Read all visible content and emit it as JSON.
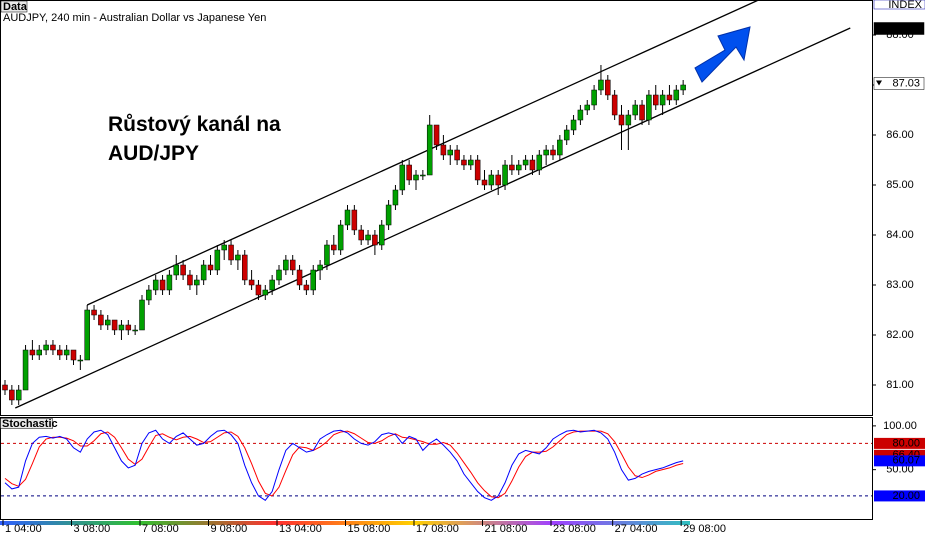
{
  "chart_data": {
    "type": "candlestick",
    "label": "Data",
    "title": "AUDJPY, 240 min - Australian Dollar vs Japanese Yen",
    "index_label": "INDEX",
    "annotation": [
      "Růstový kanál na",
      "AUD/JPY"
    ],
    "categories": [
      "1 04:00",
      null,
      null,
      null,
      null,
      null,
      null,
      null,
      null,
      null,
      "3 08:00",
      null,
      null,
      null,
      null,
      null,
      null,
      null,
      null,
      null,
      "7 08:00",
      null,
      null,
      null,
      null,
      null,
      null,
      null,
      null,
      null,
      "9 08:00",
      null,
      null,
      null,
      null,
      null,
      null,
      null,
      null,
      null,
      "13 04:00",
      null,
      null,
      null,
      null,
      null,
      null,
      null,
      null,
      null,
      "15 08:00",
      null,
      null,
      null,
      null,
      null,
      null,
      null,
      null,
      null,
      "17 08:00",
      null,
      null,
      null,
      null,
      null,
      null,
      null,
      null,
      null,
      "21 08:00",
      null,
      null,
      null,
      null,
      null,
      null,
      null,
      null,
      null,
      "23 08:00",
      null,
      null,
      null,
      null,
      null,
      null,
      null,
      null,
      "27 04:00",
      null,
      null,
      null,
      null,
      null,
      null,
      null,
      null,
      null,
      "29 08:00"
    ],
    "candles": [
      [
        81.0,
        81.1,
        80.8,
        80.9
      ],
      [
        80.9,
        81.0,
        80.6,
        80.7
      ],
      [
        80.7,
        81.0,
        80.6,
        80.9
      ],
      [
        80.9,
        81.8,
        80.9,
        81.7
      ],
      [
        81.7,
        81.9,
        81.5,
        81.6
      ],
      [
        81.6,
        81.8,
        81.5,
        81.7
      ],
      [
        81.7,
        81.9,
        81.6,
        81.8
      ],
      [
        81.8,
        81.9,
        81.6,
        81.7
      ],
      [
        81.7,
        81.8,
        81.5,
        81.6
      ],
      [
        81.6,
        81.8,
        81.5,
        81.7
      ],
      [
        81.7,
        81.7,
        81.4,
        81.5
      ],
      [
        81.5,
        81.6,
        81.3,
        81.5
      ],
      [
        81.5,
        82.6,
        81.5,
        82.5
      ],
      [
        82.5,
        82.6,
        82.3,
        82.4
      ],
      [
        82.4,
        82.5,
        82.1,
        82.2
      ],
      [
        82.2,
        82.4,
        82.1,
        82.3
      ],
      [
        82.3,
        82.3,
        82.0,
        82.1
      ],
      [
        82.1,
        82.3,
        81.9,
        82.2
      ],
      [
        82.2,
        82.3,
        82.0,
        82.1
      ],
      [
        82.1,
        82.2,
        82.0,
        82.1
      ],
      [
        82.1,
        82.8,
        82.1,
        82.7
      ],
      [
        82.7,
        83.0,
        82.6,
        82.9
      ],
      [
        82.9,
        83.2,
        82.8,
        83.1
      ],
      [
        83.1,
        83.2,
        82.8,
        82.9
      ],
      [
        82.9,
        83.3,
        82.8,
        83.2
      ],
      [
        83.2,
        83.6,
        83.1,
        83.4
      ],
      [
        83.4,
        83.5,
        83.1,
        83.2
      ],
      [
        83.2,
        83.3,
        82.9,
        83.0
      ],
      [
        83.0,
        83.2,
        82.8,
        83.1
      ],
      [
        83.1,
        83.5,
        83.0,
        83.4
      ],
      [
        83.4,
        83.6,
        83.2,
        83.3
      ],
      [
        83.3,
        83.8,
        83.2,
        83.7
      ],
      [
        83.7,
        83.9,
        83.5,
        83.8
      ],
      [
        83.8,
        83.9,
        83.4,
        83.5
      ],
      [
        83.5,
        83.7,
        83.3,
        83.6
      ],
      [
        83.6,
        83.7,
        83.0,
        83.1
      ],
      [
        83.1,
        83.3,
        82.9,
        83.0
      ],
      [
        83.0,
        83.1,
        82.7,
        82.8
      ],
      [
        82.8,
        83.0,
        82.7,
        82.9
      ],
      [
        82.9,
        83.2,
        82.8,
        83.1
      ],
      [
        83.1,
        83.4,
        83.0,
        83.3
      ],
      [
        83.3,
        83.6,
        83.2,
        83.5
      ],
      [
        83.5,
        83.6,
        83.2,
        83.3
      ],
      [
        83.3,
        83.4,
        82.9,
        83.0
      ],
      [
        83.0,
        83.1,
        82.8,
        82.9
      ],
      [
        82.9,
        83.4,
        82.8,
        83.3
      ],
      [
        83.3,
        83.5,
        83.1,
        83.4
      ],
      [
        83.4,
        83.9,
        83.3,
        83.8
      ],
      [
        83.8,
        84.0,
        83.6,
        83.7
      ],
      [
        83.7,
        84.3,
        83.6,
        84.2
      ],
      [
        84.2,
        84.6,
        84.1,
        84.5
      ],
      [
        84.5,
        84.6,
        84.0,
        84.1
      ],
      [
        84.1,
        84.2,
        83.8,
        83.9
      ],
      [
        83.9,
        84.1,
        83.8,
        84.0
      ],
      [
        84.0,
        84.1,
        83.6,
        83.8
      ],
      [
        83.8,
        84.3,
        83.7,
        84.2
      ],
      [
        84.2,
        84.7,
        84.1,
        84.6
      ],
      [
        84.6,
        85.0,
        84.5,
        84.9
      ],
      [
        84.9,
        85.5,
        84.8,
        85.4
      ],
      [
        85.4,
        85.5,
        85.0,
        85.1
      ],
      [
        85.1,
        85.3,
        84.9,
        85.2
      ],
      [
        85.2,
        85.3,
        85.1,
        85.2
      ],
      [
        85.2,
        86.4,
        85.2,
        86.2
      ],
      [
        86.2,
        86.2,
        85.7,
        85.8
      ],
      [
        85.8,
        86.0,
        85.5,
        85.6
      ],
      [
        85.6,
        85.8,
        85.4,
        85.7
      ],
      [
        85.7,
        85.8,
        85.4,
        85.5
      ],
      [
        85.5,
        85.6,
        85.3,
        85.4
      ],
      [
        85.4,
        85.6,
        85.3,
        85.5
      ],
      [
        85.5,
        85.6,
        85.0,
        85.1
      ],
      [
        85.1,
        85.3,
        84.9,
        85.0
      ],
      [
        85.0,
        85.3,
        84.9,
        85.2
      ],
      [
        85.2,
        85.3,
        84.8,
        85.0
      ],
      [
        85.0,
        85.5,
        84.9,
        85.4
      ],
      [
        85.4,
        85.6,
        85.2,
        85.3
      ],
      [
        85.3,
        85.5,
        85.2,
        85.4
      ],
      [
        85.4,
        85.6,
        85.3,
        85.5
      ],
      [
        85.5,
        85.6,
        85.2,
        85.3
      ],
      [
        85.3,
        85.7,
        85.2,
        85.6
      ],
      [
        85.6,
        85.8,
        85.4,
        85.7
      ],
      [
        85.7,
        85.8,
        85.5,
        85.6
      ],
      [
        85.6,
        86.0,
        85.5,
        85.9
      ],
      [
        85.9,
        86.2,
        85.8,
        86.1
      ],
      [
        86.1,
        86.4,
        86.0,
        86.3
      ],
      [
        86.3,
        86.6,
        86.2,
        86.5
      ],
      [
        86.5,
        86.7,
        86.4,
        86.6
      ],
      [
        86.6,
        87.0,
        86.5,
        86.9
      ],
      [
        86.9,
        87.4,
        86.8,
        87.1
      ],
      [
        87.1,
        87.2,
        86.7,
        86.8
      ],
      [
        86.8,
        86.9,
        86.3,
        86.4
      ],
      [
        86.4,
        86.6,
        85.7,
        86.2
      ],
      [
        86.2,
        86.5,
        85.7,
        86.4
      ],
      [
        86.4,
        86.7,
        86.3,
        86.6
      ],
      [
        86.6,
        86.7,
        86.2,
        86.3
      ],
      [
        86.3,
        86.9,
        86.2,
        86.8
      ],
      [
        86.8,
        87.0,
        86.5,
        86.6
      ],
      [
        86.6,
        86.9,
        86.4,
        86.8
      ],
      [
        86.8,
        87.0,
        86.6,
        86.7
      ],
      [
        86.7,
        87.0,
        86.6,
        86.9
      ],
      [
        86.9,
        87.1,
        86.8,
        87.0
      ]
    ],
    "up_color": "#00a000",
    "down_color": "#cc0000",
    "ylim": [
      80.4,
      88.7
    ],
    "yticks": [
      {
        "value": 81,
        "label": "81.00"
      },
      {
        "value": 82,
        "label": "82.00"
      },
      {
        "value": 83,
        "label": "83.00"
      },
      {
        "value": 84,
        "label": "84.00"
      },
      {
        "value": 85,
        "label": "85.00"
      },
      {
        "value": 86,
        "label": "86.00"
      },
      {
        "value": 87,
        "label": "87.00"
      },
      {
        "value": 88,
        "label": "88.00"
      }
    ],
    "price_markers": [
      {
        "value": 88.13,
        "label": "88.13",
        "color": "#000000"
      },
      {
        "value": 87.03,
        "label": "87.03",
        "color": "#ffffff"
      }
    ],
    "channel_lines": [
      {
        "x": [
          12,
          110
        ],
        "y": [
          82.6,
          88.7
        ]
      },
      {
        "x": [
          1.5,
          123.4
        ],
        "y": [
          80.54,
          88.14
        ]
      }
    ],
    "indicator": {
      "type": "line",
      "title": "Stochastic",
      "ylim": [
        -7.5,
        109
      ],
      "yticks": [
        {
          "value": 100,
          "label": "100.00"
        },
        {
          "value": 50,
          "label": "50.00"
        }
      ],
      "levels": [
        {
          "value": 80,
          "color": "#cc0000"
        },
        {
          "value": 20,
          "color": "#000080"
        }
      ],
      "markers": [
        {
          "value": 80,
          "label": "80.00",
          "color": "#cc0000"
        },
        {
          "value": 66.4,
          "label": "66.40",
          "color": "#cc0000"
        },
        {
          "value": 60.07,
          "label": "60.07",
          "color": "#0000ff"
        },
        {
          "value": 20,
          "label": "20.00",
          "color": "#0000ff"
        }
      ],
      "series": [
        {
          "color": "#ff0000",
          "values": [
            40,
            34,
            31,
            39,
            57,
            76,
            85,
            87,
            87,
            86,
            83,
            77,
            77,
            83,
            91,
            93,
            87,
            75,
            62,
            56,
            62,
            76,
            89,
            91,
            87,
            84,
            87,
            88,
            85,
            81,
            82,
            87,
            92,
            93,
            88,
            75,
            57,
            37,
            23,
            20,
            30,
            49,
            67,
            76,
            75,
            72,
            76,
            82,
            90,
            93,
            94,
            91,
            86,
            81,
            80,
            83,
            88,
            91,
            87,
            86,
            84,
            82,
            79,
            79,
            81,
            78,
            69,
            58,
            47,
            35,
            26,
            19,
            18,
            23,
            37,
            53,
            65,
            70,
            70,
            71,
            76,
            83,
            90,
            93,
            94,
            94,
            94,
            94,
            91,
            82,
            68,
            53,
            43,
            41,
            44,
            48,
            50,
            52,
            55,
            57
          ]
        },
        {
          "color": "#0000ff",
          "values": [
            35,
            28,
            30,
            60,
            80,
            87,
            88,
            86,
            88,
            85,
            75,
            70,
            85,
            93,
            95,
            90,
            75,
            60,
            52,
            55,
            80,
            92,
            95,
            85,
            80,
            88,
            92,
            85,
            78,
            80,
            88,
            94,
            95,
            90,
            80,
            55,
            35,
            20,
            15,
            25,
            50,
            72,
            80,
            75,
            70,
            72,
            85,
            90,
            94,
            95,
            92,
            85,
            80,
            78,
            82,
            90,
            92,
            90,
            80,
            88,
            85,
            72,
            80,
            85,
            78,
            70,
            60,
            45,
            35,
            25,
            18,
            15,
            20,
            35,
            55,
            68,
            72,
            70,
            68,
            75,
            85,
            90,
            94,
            95,
            93,
            94,
            95,
            92,
            85,
            70,
            50,
            38,
            40,
            45,
            48,
            50,
            52,
            55,
            58,
            60
          ]
        }
      ]
    }
  }
}
